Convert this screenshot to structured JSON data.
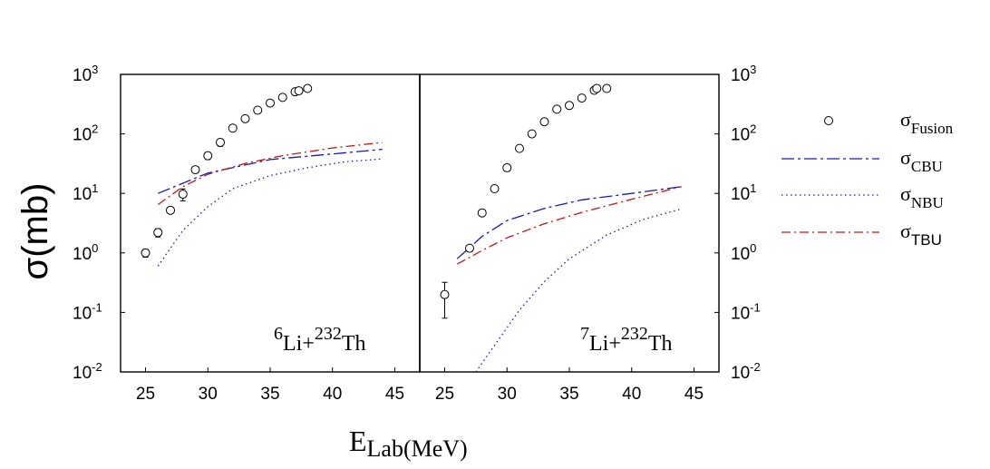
{
  "chart_data": {
    "type": "scatter",
    "y_axis_label": "σ(mb)",
    "x_axis_label": {
      "main": "E",
      "sub": "Lab(MeV)"
    },
    "y_scale": "log",
    "y_range": [
      0.01,
      1000
    ],
    "x_range": [
      23,
      47
    ],
    "x_ticks": [
      "25",
      "30",
      "35",
      "40",
      "45"
    ],
    "y_ticks": [
      {
        "base": "10",
        "exp": "3",
        "value": 1000
      },
      {
        "base": "10",
        "exp": "2",
        "value": 100
      },
      {
        "base": "10",
        "exp": "1",
        "value": 10
      },
      {
        "base": "10",
        "exp": "0",
        "value": 1
      },
      {
        "base": "10",
        "exp": "-1",
        "value": 0.1
      },
      {
        "base": "10",
        "exp": "-2",
        "value": 0.01
      }
    ],
    "legend": [
      {
        "key": "fusion",
        "symbol": "σ",
        "sub": "Fusion",
        "style": "circle",
        "color": "#000000"
      },
      {
        "key": "cbu",
        "symbol": "σ",
        "sub": "CBU",
        "style": "dash",
        "color": "#1a1ab0"
      },
      {
        "key": "nbu",
        "symbol": "σ",
        "sub": "NBU",
        "style": "dot",
        "color": "#1a1ab0"
      },
      {
        "key": "tbu",
        "symbol": "σ",
        "sub": "TBU",
        "style": "dashdot",
        "color": "#c01818"
      }
    ],
    "panels": [
      {
        "label": {
          "sup1": "6",
          "li": "Li+",
          "sup2": "232",
          "th": "Th"
        },
        "fusion": {
          "x": [
            25,
            26,
            27,
            28,
            29,
            30,
            31,
            32,
            33,
            34,
            35,
            36,
            37,
            37.3,
            38
          ],
          "y": [
            1.0,
            2.2,
            5.2,
            9.7,
            25,
            43,
            72,
            125,
            180,
            250,
            330,
            410,
            510,
            530,
            580
          ],
          "err": [
            0.15,
            0.35,
            0.6,
            2.2,
            3,
            6,
            10,
            15,
            20,
            30,
            35,
            45,
            55,
            55,
            60
          ]
        },
        "cbu": {
          "x": [
            26,
            30,
            35,
            40,
            44
          ],
          "y": [
            10,
            22,
            37,
            46,
            55
          ]
        },
        "nbu": {
          "x": [
            26,
            27,
            28,
            30,
            32,
            35,
            38,
            41,
            44
          ],
          "y": [
            0.6,
            1.2,
            2.4,
            6,
            12,
            20,
            27,
            34,
            38
          ]
        },
        "tbu": {
          "x": [
            26,
            28,
            30,
            33,
            36,
            40,
            44
          ],
          "y": [
            6.5,
            13,
            21,
            32,
            43,
            58,
            72
          ]
        }
      },
      {
        "label": {
          "sup1": "7",
          "li": "Li+",
          "sup2": "232",
          "th": "Th"
        },
        "fusion": {
          "x": [
            25,
            27,
            28,
            29,
            30,
            31,
            32,
            33,
            34,
            35,
            36,
            37,
            37.2,
            38
          ],
          "y": [
            0.2,
            1.2,
            4.7,
            12,
            27,
            57,
            100,
            160,
            260,
            300,
            400,
            540,
            580,
            580
          ],
          "err": [
            0.12,
            0.15,
            0.5,
            1.2,
            3,
            6,
            10,
            16,
            26,
            30,
            40,
            55,
            58,
            60
          ]
        },
        "cbu": {
          "x": [
            26,
            28,
            30,
            33,
            36,
            40,
            44
          ],
          "y": [
            0.8,
            1.9,
            3.5,
            5.6,
            7.8,
            10,
            13
          ]
        },
        "nbu": {
          "x": [
            27.5,
            29,
            31,
            33,
            35,
            38,
            41,
            44
          ],
          "y": [
            0.01,
            0.028,
            0.11,
            0.33,
            0.8,
            2,
            3.7,
            5.5
          ]
        },
        "tbu": {
          "x": [
            26,
            28,
            30,
            33,
            36,
            40,
            44
          ],
          "y": [
            0.65,
            1.1,
            1.8,
            3.1,
            4.8,
            8,
            13
          ]
        }
      }
    ]
  }
}
